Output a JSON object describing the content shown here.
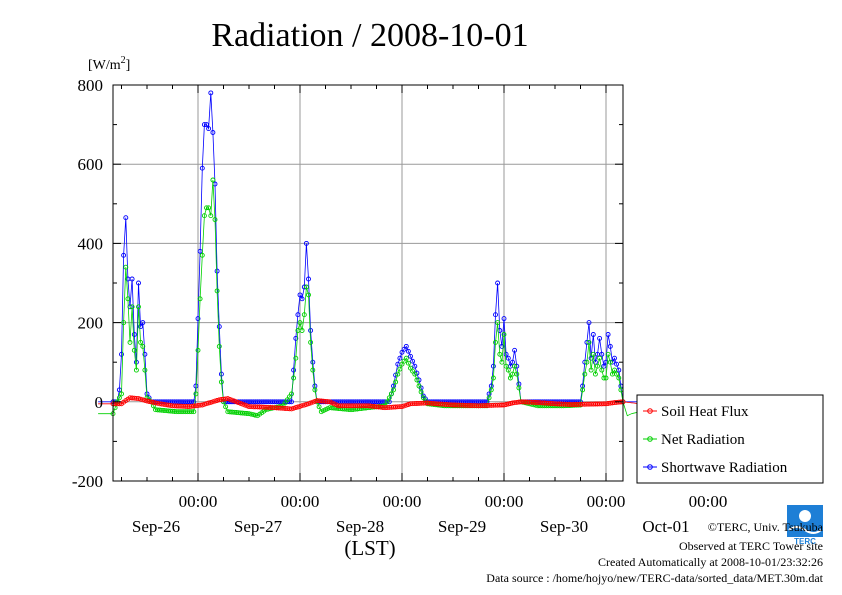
{
  "chart_data": {
    "type": "line",
    "title": "Radiation / 2008-10-01",
    "ylabel_prefix": "[W/m",
    "ylabel_sup": "2",
    "ylabel_suffix": "]",
    "xlabel": "(LST)",
    "ylim": [
      -200,
      800
    ],
    "yticks": [
      "800",
      "600",
      "400",
      "200",
      "0",
      "-200"
    ],
    "ytick_values": [
      800,
      600,
      400,
      200,
      0,
      -200
    ],
    "xlim_hours": [
      -20,
      100
    ],
    "xticks": [
      {
        "time": "00:00",
        "date": "Sep-26",
        "hour": 0
      },
      {
        "time": "00:00",
        "date": "Sep-27",
        "hour": 24
      },
      {
        "time": "00:00",
        "date": "Sep-28",
        "hour": 48
      },
      {
        "time": "00:00",
        "date": "Sep-29",
        "hour": 72
      },
      {
        "time": "00:00",
        "date": "Sep-30",
        "hour": 96
      },
      {
        "time": "00:00",
        "date": "Oct-01",
        "hour": 120
      }
    ],
    "grid": true,
    "legend_position": "right",
    "series": [
      {
        "name": "Soil Heat Flux",
        "color": "#ff0000",
        "marker": "circle",
        "anchors": [
          [
            -23.5,
            -5
          ],
          [
            -18,
            -5
          ],
          [
            -17,
            3
          ],
          [
            -16,
            10
          ],
          [
            -14,
            8
          ],
          [
            -12,
            2
          ],
          [
            -9,
            -5
          ],
          [
            -6,
            -10
          ],
          [
            -2,
            -12
          ],
          [
            1,
            -8
          ],
          [
            5,
            5
          ],
          [
            7,
            8
          ],
          [
            9,
            0
          ],
          [
            12,
            -12
          ],
          [
            18,
            -15
          ],
          [
            22,
            -18
          ],
          [
            26,
            -5
          ],
          [
            28,
            3
          ],
          [
            31,
            0
          ],
          [
            33,
            -10
          ],
          [
            40,
            -10
          ],
          [
            44,
            -15
          ],
          [
            48,
            -12
          ],
          [
            50,
            -5
          ],
          [
            54,
            -3
          ],
          [
            56,
            -5
          ],
          [
            60,
            -8
          ],
          [
            66,
            -10
          ],
          [
            72,
            -8
          ],
          [
            74,
            -3
          ],
          [
            76,
            0
          ],
          [
            80,
            -2
          ],
          [
            84,
            -5
          ],
          [
            88,
            -7
          ],
          [
            96,
            -5
          ],
          [
            98,
            -2
          ],
          [
            100,
            0
          ],
          [
            104,
            -5
          ],
          [
            106,
            -20
          ],
          [
            108,
            -20
          ],
          [
            110,
            -18
          ]
        ],
        "values_note": "estimated"
      },
      {
        "name": "Net Radiation",
        "color": "#00d000",
        "marker": "circle",
        "anchors": [
          [
            -23.5,
            -30
          ],
          [
            -20,
            -30
          ],
          [
            -19,
            0
          ],
          [
            -18,
            20
          ],
          [
            -17.5,
            200
          ],
          [
            -17,
            340
          ],
          [
            -16.5,
            260
          ],
          [
            -16,
            150
          ],
          [
            -15.5,
            240
          ],
          [
            -15,
            130
          ],
          [
            -14.5,
            80
          ],
          [
            -14,
            240
          ],
          [
            -13.5,
            150
          ],
          [
            -13,
            140
          ],
          [
            -12.5,
            80
          ],
          [
            -12,
            10
          ],
          [
            -11,
            0
          ],
          [
            -10,
            -20
          ],
          [
            -5,
            -25
          ],
          [
            -1,
            -25
          ],
          [
            -0.5,
            20
          ],
          [
            0,
            130
          ],
          [
            0.5,
            260
          ],
          [
            1,
            370
          ],
          [
            1.5,
            470
          ],
          [
            2,
            490
          ],
          [
            2.5,
            490
          ],
          [
            3,
            470
          ],
          [
            3.5,
            560
          ],
          [
            4,
            460
          ],
          [
            4.5,
            280
          ],
          [
            5,
            140
          ],
          [
            5.5,
            50
          ],
          [
            6,
            0
          ],
          [
            7,
            -25
          ],
          [
            12,
            -30
          ],
          [
            14,
            -35
          ],
          [
            16,
            -20
          ],
          [
            20,
            -10
          ],
          [
            22,
            20
          ],
          [
            22.5,
            60
          ],
          [
            23,
            110
          ],
          [
            23.5,
            180
          ],
          [
            24,
            200
          ],
          [
            24.5,
            180
          ],
          [
            25,
            220
          ],
          [
            25.5,
            290
          ],
          [
            26,
            270
          ],
          [
            26.5,
            150
          ],
          [
            27,
            80
          ],
          [
            27.5,
            30
          ],
          [
            28,
            0
          ],
          [
            29,
            -25
          ],
          [
            31,
            -15
          ],
          [
            36,
            -20
          ],
          [
            40,
            -15
          ],
          [
            44,
            -10
          ],
          [
            46,
            30
          ],
          [
            47,
            70
          ],
          [
            48,
            95
          ],
          [
            49,
            110
          ],
          [
            50,
            85
          ],
          [
            51,
            70
          ],
          [
            52,
            40
          ],
          [
            53,
            10
          ],
          [
            54,
            -5
          ],
          [
            58,
            -10
          ],
          [
            64,
            -10
          ],
          [
            68,
            -10
          ],
          [
            69,
            30
          ],
          [
            69.5,
            60
          ],
          [
            70,
            150
          ],
          [
            70.5,
            200
          ],
          [
            71,
            120
          ],
          [
            71.5,
            100
          ],
          [
            72,
            170
          ],
          [
            72.5,
            90
          ],
          [
            73,
            80
          ],
          [
            73.5,
            60
          ],
          [
            74,
            70
          ],
          [
            74.5,
            90
          ],
          [
            75,
            70
          ],
          [
            76,
            0
          ],
          [
            80,
            -10
          ],
          [
            86,
            -10
          ],
          [
            90,
            -8
          ],
          [
            90.5,
            30
          ],
          [
            91,
            70
          ],
          [
            91.5,
            100
          ],
          [
            92,
            150
          ],
          [
            92.5,
            80
          ],
          [
            93,
            120
          ],
          [
            93.5,
            70
          ],
          [
            94,
            90
          ],
          [
            94.5,
            110
          ],
          [
            95,
            80
          ],
          [
            95.5,
            60
          ],
          [
            96,
            60
          ],
          [
            96.5,
            120
          ],
          [
            97,
            100
          ],
          [
            97.5,
            70
          ],
          [
            98,
            80
          ],
          [
            99,
            60
          ],
          [
            100,
            0
          ],
          [
            101,
            -35
          ],
          [
            102,
            -30
          ],
          [
            104,
            -25
          ],
          [
            106,
            -20
          ]
        ],
        "values_note": "estimated"
      },
      {
        "name": "Shortwave Radiation",
        "color": "#0000ff",
        "marker": "circle",
        "anchors": [
          [
            -23.5,
            0
          ],
          [
            -19,
            0
          ],
          [
            -18.5,
            30
          ],
          [
            -18,
            120
          ],
          [
            -17.5,
            370
          ],
          [
            -17,
            465
          ],
          [
            -16.5,
            310
          ],
          [
            -16,
            240
          ],
          [
            -15.5,
            310
          ],
          [
            -15,
            170
          ],
          [
            -14.5,
            100
          ],
          [
            -14,
            300
          ],
          [
            -13.5,
            190
          ],
          [
            -13,
            200
          ],
          [
            -12.5,
            120
          ],
          [
            -12,
            20
          ],
          [
            -11,
            0
          ],
          [
            -1,
            0
          ],
          [
            -0.5,
            40
          ],
          [
            0,
            210
          ],
          [
            0.5,
            380
          ],
          [
            1,
            590
          ],
          [
            1.5,
            700
          ],
          [
            2,
            700
          ],
          [
            2.5,
            690
          ],
          [
            3,
            780
          ],
          [
            3.5,
            680
          ],
          [
            4,
            550
          ],
          [
            4.5,
            330
          ],
          [
            5,
            190
          ],
          [
            5.5,
            70
          ],
          [
            6,
            0
          ],
          [
            22,
            0
          ],
          [
            22.5,
            80
          ],
          [
            23,
            160
          ],
          [
            23.5,
            220
          ],
          [
            24,
            270
          ],
          [
            24.5,
            260
          ],
          [
            25,
            290
          ],
          [
            25.5,
            400
          ],
          [
            26,
            310
          ],
          [
            26.5,
            180
          ],
          [
            27,
            100
          ],
          [
            27.5,
            40
          ],
          [
            28,
            0
          ],
          [
            45,
            0
          ],
          [
            46,
            40
          ],
          [
            47,
            95
          ],
          [
            48,
            125
          ],
          [
            49,
            140
          ],
          [
            50,
            115
          ],
          [
            51,
            90
          ],
          [
            52,
            55
          ],
          [
            53,
            15
          ],
          [
            54,
            0
          ],
          [
            68,
            0
          ],
          [
            69,
            40
          ],
          [
            69.5,
            90
          ],
          [
            70,
            220
          ],
          [
            70.5,
            300
          ],
          [
            71,
            180
          ],
          [
            71.5,
            140
          ],
          [
            72,
            210
          ],
          [
            72.5,
            120
          ],
          [
            73,
            110
          ],
          [
            73.5,
            90
          ],
          [
            74,
            100
          ],
          [
            74.5,
            130
          ],
          [
            75,
            90
          ],
          [
            76,
            0
          ],
          [
            90,
            0
          ],
          [
            90.5,
            40
          ],
          [
            91,
            100
          ],
          [
            91.5,
            150
          ],
          [
            92,
            200
          ],
          [
            92.5,
            110
          ],
          [
            93,
            170
          ],
          [
            93.5,
            100
          ],
          [
            94,
            120
          ],
          [
            94.5,
            160
          ],
          [
            95,
            120
          ],
          [
            95.5,
            90
          ],
          [
            96,
            100
          ],
          [
            96.5,
            170
          ],
          [
            97,
            140
          ],
          [
            97.5,
            100
          ],
          [
            98,
            110
          ],
          [
            99,
            80
          ],
          [
            100,
            0
          ],
          [
            106,
            0
          ]
        ],
        "values_note": "estimated"
      }
    ]
  },
  "footer": {
    "copyright": "©TERC, Univ. Tsukuba",
    "observed": "Observed at TERC Tower site",
    "created": "Created Automatically at 2008-10-01/23:32:26",
    "source": "Data source : /home/hojyo/new/TERC-data/sorted_data/MET.30m.dat"
  },
  "logo": {
    "text": "TERC",
    "color": "#1e7fd6"
  }
}
